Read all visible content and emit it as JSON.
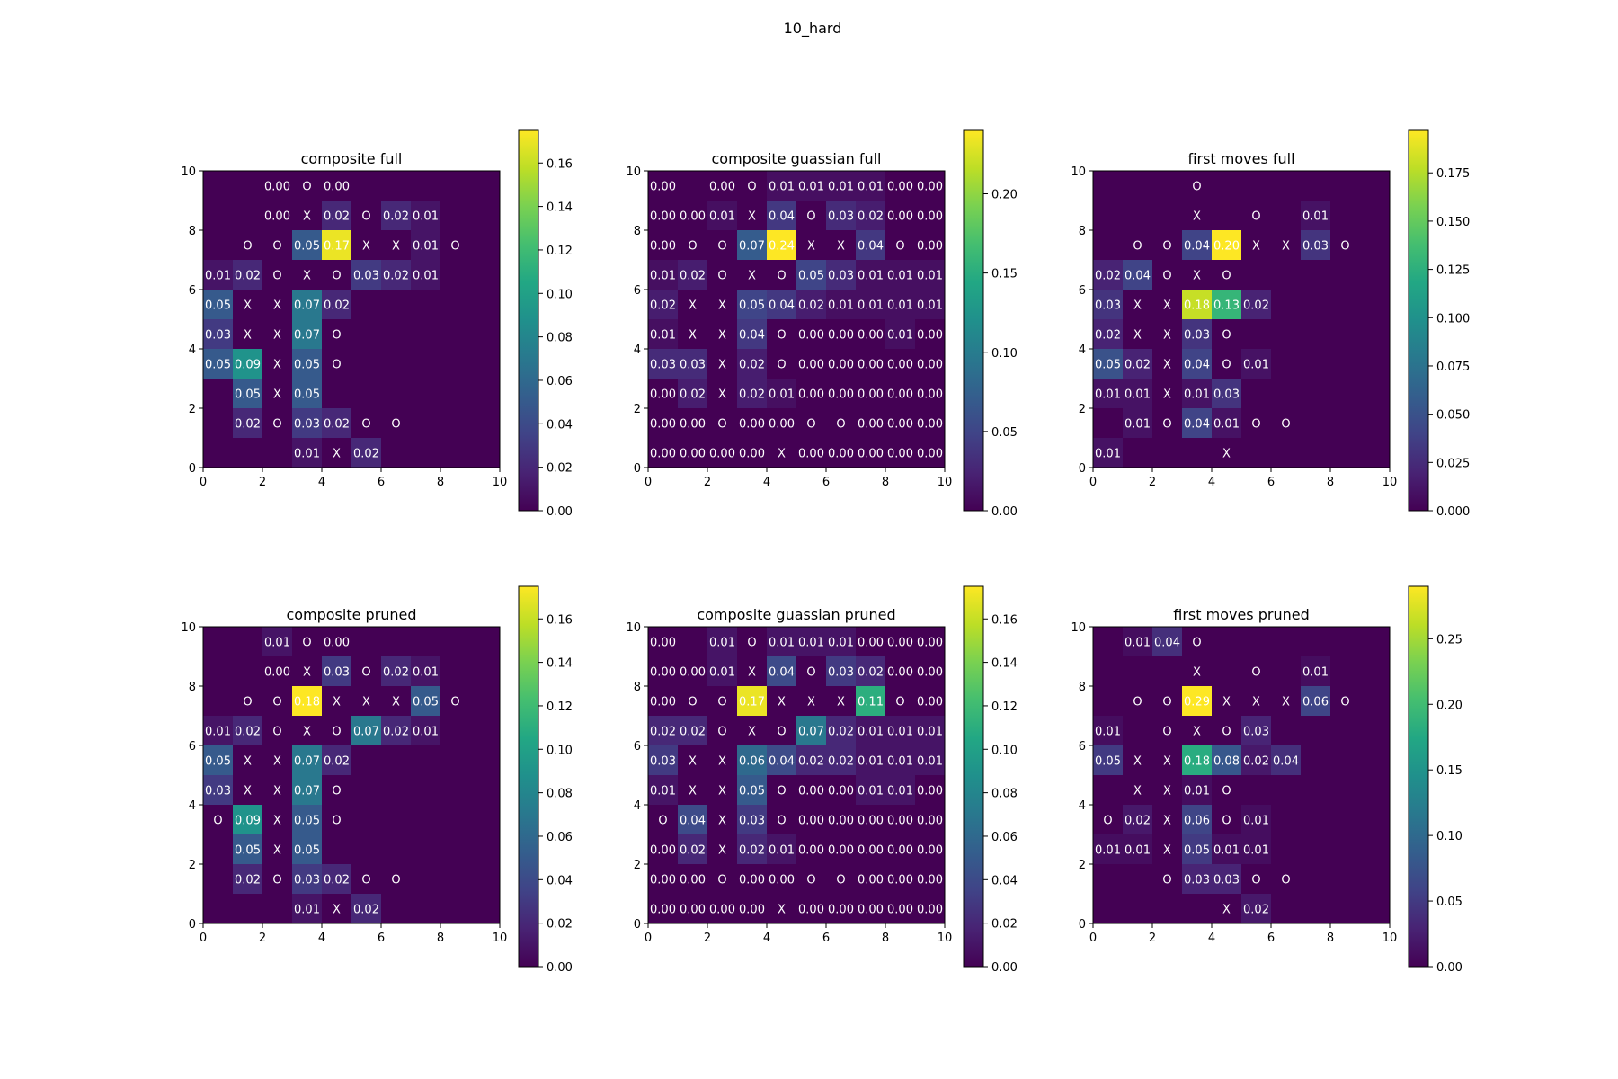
{
  "figure_title": "10_hard",
  "chart_data": [
    {
      "type": "heatmap",
      "title": "composite  full",
      "xlim": [
        0,
        10
      ],
      "ylim": [
        0,
        10
      ],
      "x_ticks": [
        0,
        2,
        4,
        6,
        8,
        10
      ],
      "y_ticks": [
        0,
        2,
        4,
        6,
        8,
        10
      ],
      "colorbar_ticks": [
        "0.00",
        "0.02",
        "0.04",
        "0.06",
        "0.08",
        "0.10",
        "0.12",
        "0.14",
        "0.16"
      ],
      "vmin": 0,
      "vmax": 0.175,
      "rows": [
        [
          null,
          null,
          0.0,
          "O",
          0.0,
          null,
          null,
          null,
          null,
          null
        ],
        [
          null,
          null,
          0.0,
          "X",
          0.02,
          "O",
          0.02,
          0.01,
          null,
          null
        ],
        [
          null,
          "O",
          "O",
          0.05,
          0.17,
          "X",
          "X",
          0.01,
          "O",
          null
        ],
        [
          0.01,
          0.02,
          "O",
          "X",
          "O",
          0.03,
          0.02,
          0.01,
          null,
          null
        ],
        [
          0.05,
          "X",
          "X",
          0.07,
          0.02,
          null,
          null,
          null,
          null,
          null
        ],
        [
          0.03,
          "X",
          "X",
          0.07,
          "O",
          null,
          null,
          null,
          null,
          null
        ],
        [
          0.05,
          0.09,
          "X",
          0.05,
          "O",
          null,
          null,
          null,
          null,
          null
        ],
        [
          null,
          0.05,
          "X",
          0.05,
          null,
          null,
          null,
          null,
          null,
          null
        ],
        [
          null,
          0.02,
          "O",
          0.03,
          0.02,
          "O",
          "O",
          null,
          null,
          null
        ],
        [
          null,
          null,
          null,
          0.01,
          "X",
          0.02,
          null,
          null,
          null,
          null
        ]
      ]
    },
    {
      "type": "heatmap",
      "title": "composite guassian full",
      "xlim": [
        0,
        10
      ],
      "ylim": [
        0,
        10
      ],
      "x_ticks": [
        0,
        2,
        4,
        6,
        8,
        10
      ],
      "y_ticks": [
        0,
        2,
        4,
        6,
        8,
        10
      ],
      "colorbar_ticks": [
        "0.00",
        "0.05",
        "0.10",
        "0.15",
        "0.20"
      ],
      "vmin": 0,
      "vmax": 0.24,
      "rows": [
        [
          0.0,
          null,
          0.0,
          "O",
          0.01,
          0.01,
          0.01,
          0.01,
          0.0,
          0.0
        ],
        [
          0.0,
          0.0,
          0.01,
          "X",
          0.04,
          "O",
          0.03,
          0.02,
          0.0,
          0.0
        ],
        [
          0.0,
          "O",
          "O",
          0.07,
          0.24,
          "X",
          "X",
          0.04,
          "O",
          0.0
        ],
        [
          0.01,
          0.02,
          "O",
          "X",
          "O",
          0.05,
          0.03,
          0.01,
          0.01,
          0.01
        ],
        [
          0.02,
          "X",
          "X",
          0.05,
          0.04,
          0.02,
          0.01,
          0.01,
          0.01,
          0.01
        ],
        [
          0.01,
          "X",
          "X",
          0.04,
          "O",
          0.0,
          0.0,
          0.0,
          0.01,
          0.0
        ],
        [
          0.03,
          0.03,
          "X",
          0.02,
          "O",
          0.0,
          0.0,
          0.0,
          0.0,
          0.0
        ],
        [
          0.0,
          0.02,
          "X",
          0.02,
          0.01,
          0.0,
          0.0,
          0.0,
          0.0,
          0.0
        ],
        [
          0.0,
          0.0,
          "O",
          0.0,
          0.0,
          "O",
          "O",
          0.0,
          0.0,
          0.0
        ],
        [
          0.0,
          0.0,
          0.0,
          0.0,
          "X",
          0.0,
          0.0,
          0.0,
          0.0,
          0.0
        ]
      ]
    },
    {
      "type": "heatmap",
      "title": "first moves full",
      "xlim": [
        0,
        10
      ],
      "ylim": [
        0,
        10
      ],
      "x_ticks": [
        0,
        2,
        4,
        6,
        8,
        10
      ],
      "y_ticks": [
        0,
        2,
        4,
        6,
        8,
        10
      ],
      "colorbar_ticks": [
        "0.000",
        "0.025",
        "0.050",
        "0.075",
        "0.100",
        "0.125",
        "0.150",
        "0.175"
      ],
      "vmin": 0,
      "vmax": 0.197,
      "rows": [
        [
          null,
          null,
          null,
          "O",
          null,
          null,
          null,
          null,
          null,
          null
        ],
        [
          null,
          null,
          null,
          "X",
          null,
          "O",
          null,
          0.01,
          null,
          null
        ],
        [
          null,
          "O",
          "O",
          0.04,
          0.2,
          "X",
          "X",
          0.03,
          "O",
          null
        ],
        [
          0.02,
          0.04,
          "O",
          "X",
          "O",
          null,
          null,
          null,
          null,
          null
        ],
        [
          0.03,
          "X",
          "X",
          0.18,
          0.13,
          0.02,
          null,
          null,
          null,
          null
        ],
        [
          0.02,
          "X",
          "X",
          0.03,
          "O",
          null,
          null,
          null,
          null,
          null
        ],
        [
          0.05,
          0.02,
          "X",
          0.04,
          "O",
          0.01,
          null,
          null,
          null,
          null
        ],
        [
          0.01,
          0.01,
          "X",
          0.01,
          0.03,
          null,
          null,
          null,
          null,
          null
        ],
        [
          null,
          0.01,
          "O",
          0.04,
          0.01,
          "O",
          "O",
          null,
          null,
          null
        ],
        [
          0.01,
          null,
          null,
          null,
          "X",
          null,
          null,
          null,
          null,
          null
        ]
      ]
    },
    {
      "type": "heatmap",
      "title": "composite  pruned",
      "xlim": [
        0,
        10
      ],
      "ylim": [
        0,
        10
      ],
      "x_ticks": [
        0,
        2,
        4,
        6,
        8,
        10
      ],
      "y_ticks": [
        0,
        2,
        4,
        6,
        8,
        10
      ],
      "colorbar_ticks": [
        "0.00",
        "0.02",
        "0.04",
        "0.06",
        "0.08",
        "0.10",
        "0.12",
        "0.14",
        "0.16"
      ],
      "vmin": 0,
      "vmax": 0.175,
      "rows": [
        [
          null,
          null,
          0.01,
          "O",
          0.0,
          null,
          null,
          null,
          null,
          null
        ],
        [
          null,
          null,
          0.0,
          "X",
          0.03,
          "O",
          0.02,
          0.01,
          null,
          null
        ],
        [
          null,
          "O",
          "O",
          0.18,
          "X",
          "X",
          "X",
          0.05,
          "O",
          null
        ],
        [
          0.01,
          0.02,
          "O",
          "X",
          "O",
          0.07,
          0.02,
          0.01,
          null,
          null
        ],
        [
          0.05,
          "X",
          "X",
          0.07,
          0.02,
          null,
          null,
          null,
          null,
          null
        ],
        [
          0.03,
          "X",
          "X",
          0.07,
          "O",
          null,
          null,
          null,
          null,
          null
        ],
        [
          "O",
          0.09,
          "X",
          0.05,
          "O",
          null,
          null,
          null,
          null,
          null
        ],
        [
          null,
          0.05,
          "X",
          0.05,
          null,
          null,
          null,
          null,
          null,
          null
        ],
        [
          null,
          0.02,
          "O",
          0.03,
          0.02,
          "O",
          "O",
          null,
          null,
          null
        ],
        [
          null,
          null,
          null,
          0.01,
          "X",
          0.02,
          null,
          null,
          null,
          null
        ]
      ]
    },
    {
      "type": "heatmap",
      "title": "composite guassian pruned",
      "xlim": [
        0,
        10
      ],
      "ylim": [
        0,
        10
      ],
      "x_ticks": [
        0,
        2,
        4,
        6,
        8,
        10
      ],
      "y_ticks": [
        0,
        2,
        4,
        6,
        8,
        10
      ],
      "colorbar_ticks": [
        "0.00",
        "0.02",
        "0.04",
        "0.06",
        "0.08",
        "0.10",
        "0.12",
        "0.14",
        "0.16"
      ],
      "vmin": 0,
      "vmax": 0.175,
      "rows": [
        [
          0.0,
          null,
          0.01,
          "O",
          0.01,
          0.01,
          0.01,
          0.0,
          0.0,
          0.0
        ],
        [
          0.0,
          0.0,
          0.01,
          "X",
          0.04,
          "O",
          0.03,
          0.02,
          0.0,
          0.0
        ],
        [
          0.0,
          "O",
          "O",
          0.17,
          "X",
          "X",
          "X",
          0.11,
          "O",
          0.0
        ],
        [
          0.02,
          0.02,
          "O",
          "X",
          "O",
          0.07,
          0.02,
          0.01,
          0.01,
          0.01
        ],
        [
          0.03,
          "X",
          "X",
          0.06,
          0.04,
          0.02,
          0.02,
          0.01,
          0.01,
          0.01
        ],
        [
          0.01,
          "X",
          "X",
          0.05,
          "O",
          0.0,
          0.0,
          0.01,
          0.01,
          0.0
        ],
        [
          "O",
          0.04,
          "X",
          0.03,
          "O",
          0.0,
          0.0,
          0.0,
          0.0,
          0.0
        ],
        [
          0.0,
          0.02,
          "X",
          0.02,
          0.01,
          0.0,
          0.0,
          0.0,
          0.0,
          0.0
        ],
        [
          0.0,
          0.0,
          "O",
          0.0,
          0.0,
          "O",
          "O",
          0.0,
          0.0,
          0.0
        ],
        [
          0.0,
          0.0,
          0.0,
          0.0,
          "X",
          0.0,
          0.0,
          0.0,
          0.0,
          0.0
        ]
      ]
    },
    {
      "type": "heatmap",
      "title": "first moves pruned",
      "xlim": [
        0,
        10
      ],
      "ylim": [
        0,
        10
      ],
      "x_ticks": [
        0,
        2,
        4,
        6,
        8,
        10
      ],
      "y_ticks": [
        0,
        2,
        4,
        6,
        8,
        10
      ],
      "colorbar_ticks": [
        "0.00",
        "0.05",
        "0.10",
        "0.15",
        "0.20",
        "0.25"
      ],
      "vmin": 0,
      "vmax": 0.29,
      "rows": [
        [
          null,
          0.01,
          0.04,
          "O",
          null,
          null,
          null,
          null,
          null,
          null
        ],
        [
          null,
          null,
          null,
          "X",
          null,
          "O",
          null,
          0.01,
          null,
          null
        ],
        [
          null,
          "O",
          "O",
          0.29,
          "X",
          "X",
          "X",
          0.06,
          "O",
          null
        ],
        [
          0.01,
          null,
          "O",
          "X",
          "O",
          0.03,
          null,
          null,
          null,
          null
        ],
        [
          0.05,
          "X",
          "X",
          0.18,
          0.08,
          0.02,
          0.04,
          null,
          null,
          null
        ],
        [
          null,
          "X",
          "X",
          0.01,
          "O",
          null,
          null,
          null,
          null,
          null
        ],
        [
          "O",
          0.02,
          "X",
          0.06,
          "O",
          0.01,
          null,
          null,
          null,
          null
        ],
        [
          0.01,
          0.01,
          "X",
          0.05,
          0.01,
          0.01,
          null,
          null,
          null,
          null
        ],
        [
          null,
          null,
          "O",
          0.03,
          0.03,
          "O",
          "O",
          null,
          null,
          null
        ],
        [
          null,
          null,
          null,
          null,
          "X",
          0.02,
          null,
          null,
          null,
          null
        ]
      ]
    }
  ]
}
